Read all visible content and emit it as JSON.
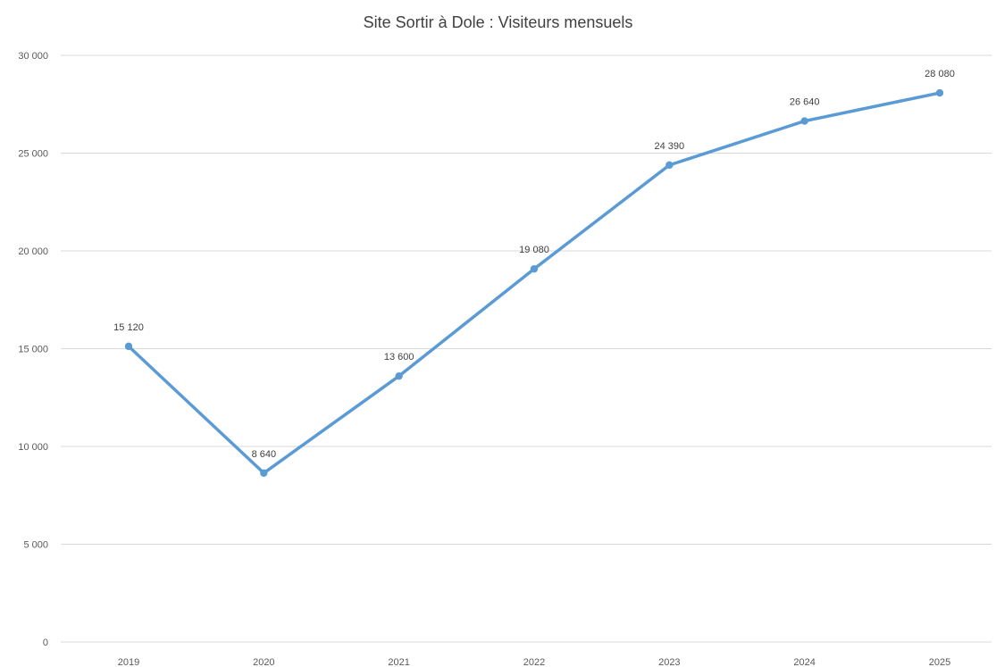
{
  "chart_data": {
    "type": "line",
    "title": "Site Sortir à Dole : Visiteurs mensuels",
    "xlabel": "",
    "ylabel": "",
    "categories": [
      "2019",
      "2020",
      "2021",
      "2022",
      "2023",
      "2024",
      "2025"
    ],
    "series": [
      {
        "values": [
          15120,
          8640,
          13600,
          19080,
          24390,
          26640,
          28080
        ],
        "data_labels": [
          "15 120",
          "8 640",
          "13 600",
          "19 080",
          "24 390",
          "26 640",
          "28 080"
        ],
        "color": "#5b9bd5"
      }
    ],
    "ylim": [
      0,
      30000
    ],
    "yticks": [
      0,
      5000,
      10000,
      15000,
      20000,
      25000,
      30000
    ],
    "ytick_labels": [
      "0",
      "5 000",
      "10 000",
      "15 000",
      "20 000",
      "25 000",
      "30 000"
    ],
    "grid": true,
    "legend": "none",
    "gridline_color": "#d9d9d9"
  }
}
